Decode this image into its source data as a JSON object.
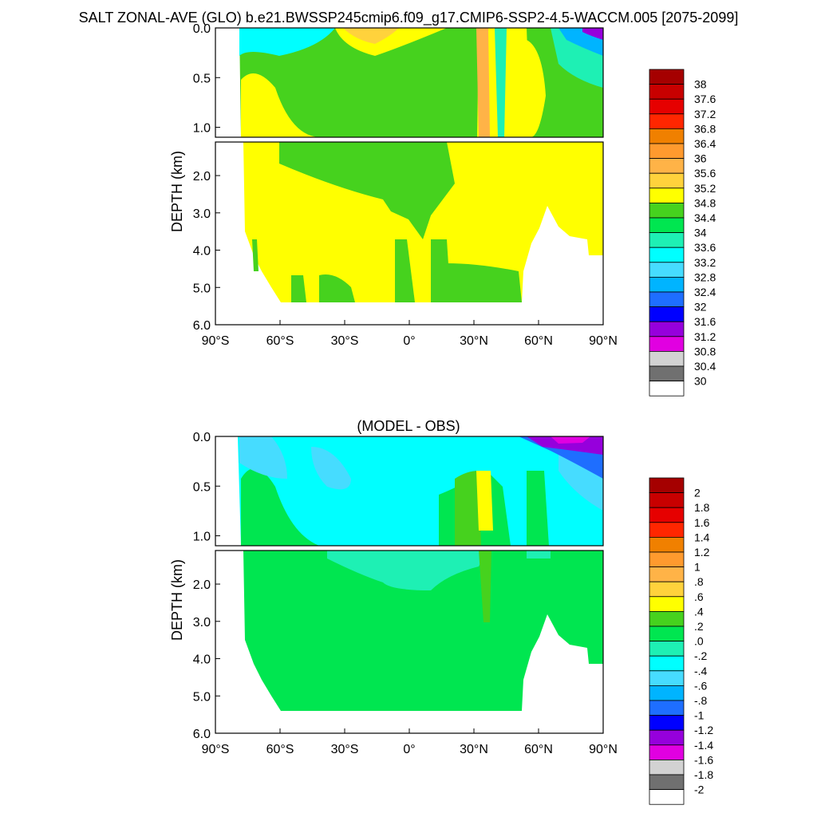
{
  "page": {
    "title": "SALT ZONAL-AVE (GLO) b.e21.BWSSP245cmip6.f09_g17.CMIP6-SSP2-4.5-WACCM.005 [2075-2099]"
  },
  "chart_data": [
    {
      "type": "heatmap",
      "title": "",
      "ylabel": "DEPTH (km)",
      "xlabel": "",
      "xlim": [
        -90,
        90
      ],
      "ylim": [
        0,
        6
      ],
      "y_split_km": 1.1,
      "x_ticks": [
        "90°S",
        "60°S",
        "30°S",
        "0°",
        "30°N",
        "60°N",
        "90°N"
      ],
      "y_ticks": [
        "0.0",
        "0.5",
        "1.0",
        "2.0",
        "3.0",
        "4.0",
        "5.0",
        "6.0"
      ],
      "colorbar": {
        "labels": [
          "38",
          "37.6",
          "37.2",
          "36.8",
          "36.4",
          "36",
          "35.6",
          "35.2",
          "34.8",
          "34.4",
          "34",
          "33.6",
          "33.2",
          "32.8",
          "32.4",
          "32",
          "31.6",
          "31.2",
          "30.8",
          "30.4",
          "30"
        ],
        "colors": [
          "#a50000",
          "#c80000",
          "#e60000",
          "#ff2600",
          "#f08000",
          "#ff9a2e",
          "#ffb347",
          "#ffd23c",
          "#ffff00",
          "#46d21e",
          "#00e650",
          "#1ef0b4",
          "#00ffff",
          "#46dcff",
          "#00b4ff",
          "#1e6eff",
          "#0000ff",
          "#9600dc",
          "#e100e1",
          "#d2d2d2",
          "#707070",
          "#ffffff"
        ]
      }
    },
    {
      "type": "heatmap",
      "title": "(MODEL - OBS)",
      "ylabel": "DEPTH (km)",
      "xlabel": "",
      "xlim": [
        -90,
        90
      ],
      "ylim": [
        0,
        6
      ],
      "y_split_km": 1.1,
      "x_ticks": [
        "90°S",
        "60°S",
        "30°S",
        "0°",
        "30°N",
        "60°N",
        "90°N"
      ],
      "y_ticks": [
        "0.0",
        "0.5",
        "1.0",
        "2.0",
        "3.0",
        "4.0",
        "5.0",
        "6.0"
      ],
      "colorbar": {
        "labels": [
          "2",
          "1.8",
          "1.6",
          "1.4",
          "1.2",
          "1",
          ".8",
          ".6",
          ".4",
          ".2",
          ".0",
          "-.2",
          "-.4",
          "-.6",
          "-.8",
          "-1",
          "-1.2",
          "-1.4",
          "-1.6",
          "-1.8",
          "-2"
        ],
        "colors": [
          "#a50000",
          "#c80000",
          "#e60000",
          "#ff2600",
          "#f08000",
          "#ff9a2e",
          "#ffb347",
          "#ffd23c",
          "#ffff00",
          "#46d21e",
          "#00e650",
          "#1ef0b4",
          "#00ffff",
          "#46dcff",
          "#00b4ff",
          "#1e6eff",
          "#0000ff",
          "#9600dc",
          "#e100e1",
          "#d2d2d2",
          "#707070",
          "#ffffff"
        ]
      }
    }
  ]
}
